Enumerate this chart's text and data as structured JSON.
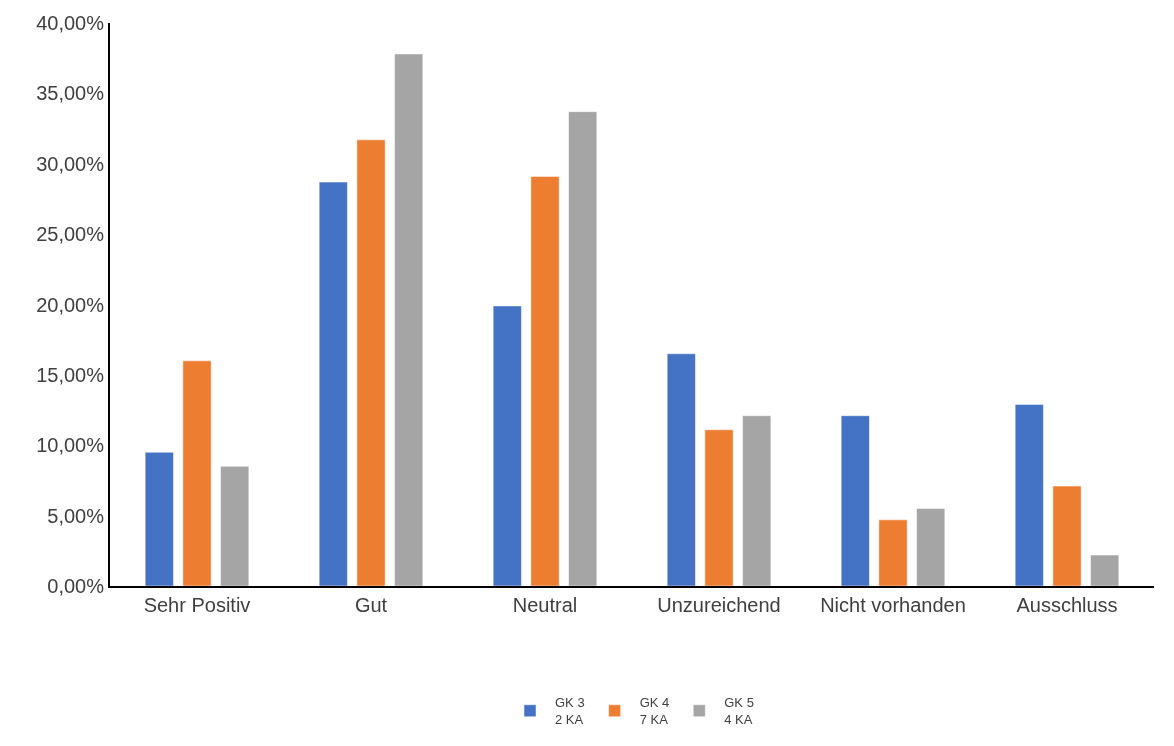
{
  "chart_data": {
    "type": "bar",
    "categories": [
      "Sehr Positiv",
      "Gut",
      "Neutral",
      "Unzureichend",
      "Nicht vorhanden",
      "Ausschluss"
    ],
    "series": [
      {
        "name": "GK 3\n2 KA",
        "color": "#4472c4",
        "values": [
          9.5,
          28.7,
          19.9,
          16.5,
          12.1,
          12.9
        ]
      },
      {
        "name": "GK 4\n7 KA",
        "color": "#ed7d31",
        "values": [
          16.0,
          31.7,
          29.1,
          11.1,
          4.7,
          7.1
        ]
      },
      {
        "name": "GK 5\n4 KA",
        "color": "#a5a5a5",
        "values": [
          8.5,
          37.8,
          33.7,
          12.1,
          5.5,
          2.2
        ]
      }
    ],
    "ylim": [
      0,
      40
    ],
    "yticks": [
      {
        "value": 0,
        "label": "0,00%"
      },
      {
        "value": 5,
        "label": "5,00%"
      },
      {
        "value": 10,
        "label": "10,00%"
      },
      {
        "value": 15,
        "label": "15,00%"
      },
      {
        "value": 20,
        "label": "20,00%"
      },
      {
        "value": 25,
        "label": "25,00%"
      },
      {
        "value": 30,
        "label": "30,00%"
      },
      {
        "value": 35,
        "label": "35,00%"
      },
      {
        "value": 40,
        "label": "40,00%"
      }
    ],
    "grid": false,
    "legend": "bottom"
  }
}
